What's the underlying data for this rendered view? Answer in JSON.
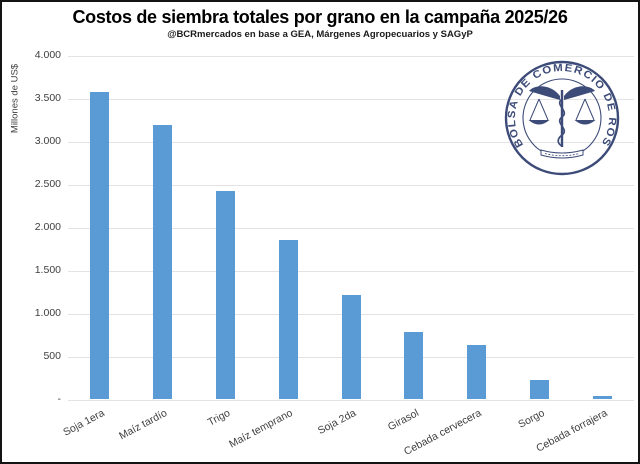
{
  "header": {
    "title": "Costos de siembra totales por grano en la campaña 2025/26",
    "subtitle": "@BCRmercados en base a GEA, Márgenes Agropecuarios y SAGyP"
  },
  "logo": {
    "ring_text": "BOLSA DE COMERCIO DE ROSARIO",
    "color": "#3C4B78"
  },
  "chart_data": {
    "type": "bar",
    "title": "Costos de siembra totales por grano en la campaña 2025/26",
    "subtitle": "@BCRmercados en base a GEA, Márgenes Agropecuarios y SAGyP",
    "categories": [
      "Soja 1era",
      "Maíz tardío",
      "Trigo",
      "Maíz temprano",
      "Soja 2da",
      "Girasol",
      "Cebada cervecera",
      "Sorgo",
      "Cebada forrajera"
    ],
    "values": [
      3580,
      3190,
      2420,
      1860,
      1220,
      790,
      630,
      230,
      45
    ],
    "xlabel": "",
    "ylabel": "Millones de US$",
    "ylim": [
      0,
      4000
    ],
    "grid": true,
    "legend": false,
    "bar_color": "#5B9BD5",
    "gridline_color": "#e3e3e3",
    "yticks": [
      {
        "label": "4.000",
        "value": 4000
      },
      {
        "label": "3.500",
        "value": 3500
      },
      {
        "label": "3.000",
        "value": 3000
      },
      {
        "label": "2.500",
        "value": 2500
      },
      {
        "label": "2.000",
        "value": 2000
      },
      {
        "label": "1.500",
        "value": 1500
      },
      {
        "label": "1.000",
        "value": 1000
      },
      {
        "label": "500",
        "value": 500
      },
      {
        "label": "-",
        "value": 0
      }
    ]
  }
}
